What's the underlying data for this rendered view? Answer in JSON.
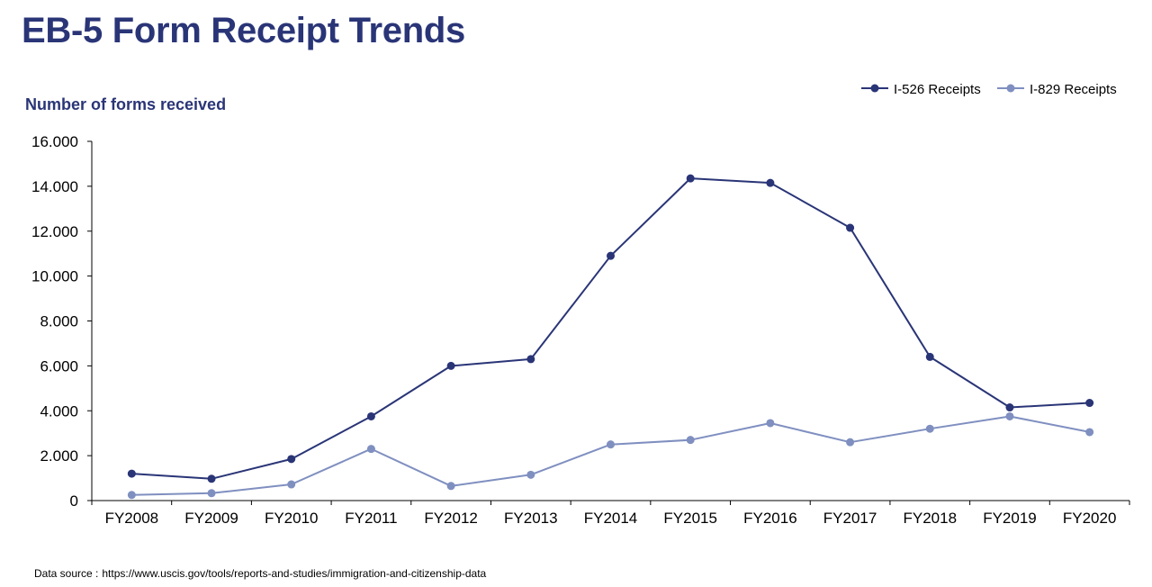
{
  "title": "EB-5 Form Receipt Trends",
  "source": {
    "prefix": "Data source :",
    "url": "https://www.uscis.gov/tools/reports-and-studies/immigration-and-citizenship-data"
  },
  "colors": {
    "title": "#2a3577",
    "i526": "#2a3577",
    "i829": "#7f8fc0",
    "axis": "#000000"
  },
  "chart_data": {
    "type": "line",
    "title": "EB-5 Form Receipt Trends",
    "ylabel": "Number of forms received",
    "xlabel": "",
    "categories": [
      "FY2008",
      "FY2009",
      "FY2010",
      "FY2011",
      "FY2012",
      "FY2013",
      "FY2014",
      "FY2015",
      "FY2016",
      "FY2017",
      "FY2018",
      "FY2019",
      "FY2020"
    ],
    "ylim": [
      0,
      16000
    ],
    "yticks": [
      0,
      2000,
      4000,
      6000,
      8000,
      10000,
      12000,
      14000,
      16000
    ],
    "ytick_labels": [
      "0",
      "2.000",
      "4.000",
      "6.000",
      "8.000",
      "10.000",
      "12.000",
      "14.000",
      "16.000"
    ],
    "grid": false,
    "legend_position": "top-right",
    "series": [
      {
        "name": "I-526 Receipts",
        "color": "#2a3577",
        "values": [
          1200,
          970,
          1850,
          3750,
          6000,
          6300,
          10900,
          14350,
          14150,
          12150,
          6400,
          4150,
          4350
        ]
      },
      {
        "name": "I-829 Receipts",
        "color": "#7f8fc0",
        "values": [
          250,
          330,
          720,
          2300,
          650,
          1150,
          2500,
          2700,
          3450,
          2600,
          3200,
          3750,
          3050
        ]
      }
    ]
  }
}
